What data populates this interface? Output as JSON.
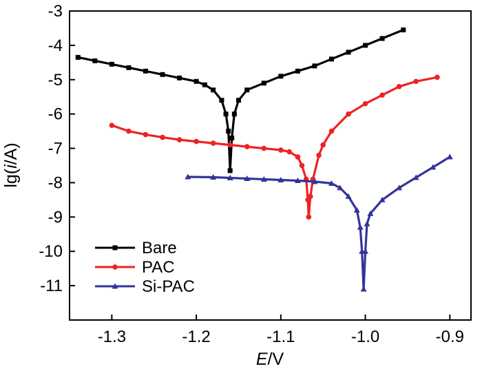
{
  "chart_data": {
    "type": "line",
    "title": "",
    "xlabel": {
      "italic": "E",
      "rest": "/V"
    },
    "ylabel": {
      "pre": "lg(",
      "italic": "i",
      "post": "/A)"
    },
    "xlim": [
      -1.35,
      -0.875
    ],
    "ylim": [
      -12,
      -3
    ],
    "xticks": [
      -1.3,
      -1.2,
      -1.1,
      -1.0,
      -0.9
    ],
    "xtick_labels": [
      "-1.3",
      "-1.2",
      "-1.1",
      "-1.0",
      "-0.9"
    ],
    "yticks": [
      -3,
      -4,
      -5,
      -6,
      -7,
      -8,
      -9,
      -10,
      -11
    ],
    "ytick_labels": [
      "-3",
      "-4",
      "-5",
      "-6",
      "-7",
      "-8",
      "-9",
      "-10",
      "-11"
    ],
    "grid": false,
    "legend_position": "bottom-left",
    "series": [
      {
        "name": "Bare",
        "color": "#000000",
        "marker": "square",
        "points": [
          [
            -1.34,
            -4.35
          ],
          [
            -1.32,
            -4.45
          ],
          [
            -1.3,
            -4.55
          ],
          [
            -1.28,
            -4.65
          ],
          [
            -1.26,
            -4.75
          ],
          [
            -1.24,
            -4.85
          ],
          [
            -1.22,
            -4.95
          ],
          [
            -1.2,
            -5.05
          ],
          [
            -1.19,
            -5.15
          ],
          [
            -1.18,
            -5.3
          ],
          [
            -1.17,
            -5.6
          ],
          [
            -1.165,
            -6.0
          ],
          [
            -1.162,
            -6.5
          ],
          [
            -1.16,
            -7.65
          ],
          [
            -1.158,
            -6.7
          ],
          [
            -1.155,
            -6.0
          ],
          [
            -1.15,
            -5.6
          ],
          [
            -1.14,
            -5.3
          ],
          [
            -1.12,
            -5.1
          ],
          [
            -1.1,
            -4.9
          ],
          [
            -1.08,
            -4.75
          ],
          [
            -1.06,
            -4.6
          ],
          [
            -1.04,
            -4.4
          ],
          [
            -1.02,
            -4.2
          ],
          [
            -1.0,
            -4.0
          ],
          [
            -0.98,
            -3.8
          ],
          [
            -0.955,
            -3.55
          ]
        ]
      },
      {
        "name": "PAC",
        "color": "#ee2222",
        "marker": "circle",
        "points": [
          [
            -1.3,
            -6.33
          ],
          [
            -1.28,
            -6.5
          ],
          [
            -1.26,
            -6.6
          ],
          [
            -1.24,
            -6.68
          ],
          [
            -1.22,
            -6.75
          ],
          [
            -1.2,
            -6.8
          ],
          [
            -1.18,
            -6.85
          ],
          [
            -1.16,
            -6.9
          ],
          [
            -1.14,
            -6.95
          ],
          [
            -1.12,
            -7.0
          ],
          [
            -1.1,
            -7.05
          ],
          [
            -1.09,
            -7.1
          ],
          [
            -1.08,
            -7.25
          ],
          [
            -1.075,
            -7.5
          ],
          [
            -1.07,
            -7.9
          ],
          [
            -1.068,
            -8.5
          ],
          [
            -1.067,
            -9.0
          ],
          [
            -1.065,
            -8.4
          ],
          [
            -1.062,
            -7.9
          ],
          [
            -1.055,
            -7.2
          ],
          [
            -1.05,
            -6.9
          ],
          [
            -1.04,
            -6.5
          ],
          [
            -1.02,
            -6.0
          ],
          [
            -1.0,
            -5.7
          ],
          [
            -0.98,
            -5.45
          ],
          [
            -0.96,
            -5.2
          ],
          [
            -0.94,
            -5.05
          ],
          [
            -0.915,
            -4.93
          ]
        ]
      },
      {
        "name": "Si-PAC",
        "color": "#333399",
        "marker": "triangle",
        "points": [
          [
            -1.21,
            -7.83
          ],
          [
            -1.18,
            -7.84
          ],
          [
            -1.16,
            -7.86
          ],
          [
            -1.14,
            -7.88
          ],
          [
            -1.12,
            -7.9
          ],
          [
            -1.1,
            -7.92
          ],
          [
            -1.08,
            -7.94
          ],
          [
            -1.06,
            -7.97
          ],
          [
            -1.04,
            -8.02
          ],
          [
            -1.03,
            -8.15
          ],
          [
            -1.02,
            -8.4
          ],
          [
            -1.01,
            -8.8
          ],
          [
            -1.006,
            -9.3
          ],
          [
            -1.004,
            -10.0
          ],
          [
            -1.002,
            -11.1
          ],
          [
            -1.0,
            -10.0
          ],
          [
            -0.998,
            -9.2
          ],
          [
            -0.994,
            -8.9
          ],
          [
            -0.98,
            -8.5
          ],
          [
            -0.96,
            -8.15
          ],
          [
            -0.94,
            -7.85
          ],
          [
            -0.92,
            -7.55
          ],
          [
            -0.9,
            -7.25
          ]
        ]
      }
    ]
  }
}
